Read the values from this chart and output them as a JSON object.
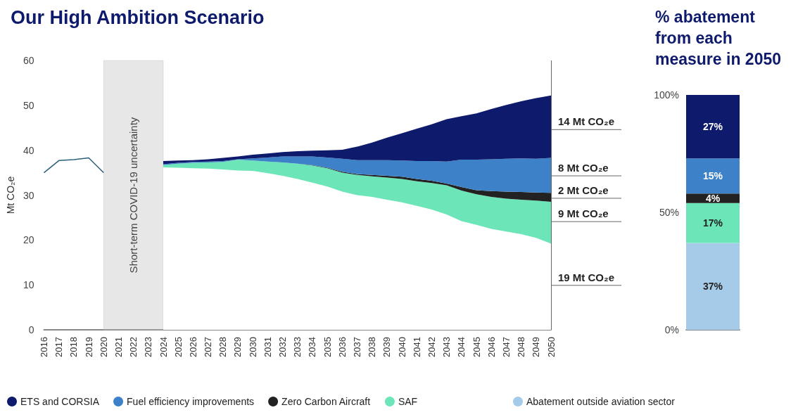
{
  "chart_data": [
    {
      "type": "area",
      "title": "Our High Ambition Scenario",
      "ylabel": "Mt CO₂e",
      "categories": [
        "2016",
        "2017",
        "2018",
        "2019",
        "2020",
        "2021",
        "2022",
        "2023",
        "2024",
        "2025",
        "2026",
        "2027",
        "2028",
        "2029",
        "2030",
        "2031",
        "2032",
        "2033",
        "2034",
        "2035",
        "2036",
        "2037",
        "2038",
        "2039",
        "2040",
        "2041",
        "2042",
        "2043",
        "2044",
        "2045",
        "2046",
        "2047",
        "2048",
        "2049",
        "2050"
      ],
      "stacked": true,
      "series": [
        {
          "type": "line",
          "color": "#2b5f7e",
          "values": [
            35.0,
            37.7,
            37.9,
            38.3,
            35.0,
            null,
            null,
            null,
            null,
            null,
            null,
            null,
            null,
            null,
            null,
            null,
            null,
            null,
            null,
            null,
            null,
            null,
            null,
            null,
            null,
            null,
            null,
            null,
            null,
            null,
            null,
            null,
            null,
            null,
            null
          ]
        },
        {
          "type": "area",
          "color": "#ffffff",
          "values": [
            null,
            null,
            null,
            null,
            null,
            null,
            null,
            null,
            36.2,
            36.1,
            36.0,
            35.9,
            35.7,
            35.5,
            35.4,
            34.9,
            34.3,
            33.6,
            32.8,
            31.9,
            30.8,
            30.0,
            29.6,
            29.0,
            28.4,
            27.6,
            26.8,
            25.7,
            24.2,
            23.4,
            22.5,
            21.9,
            21.3,
            20.5,
            19.2
          ]
        },
        {
          "type": "area",
          "name": "SAF",
          "color": "#6ce6b8",
          "values": [
            null,
            null,
            null,
            null,
            null,
            null,
            null,
            null,
            0.5,
            0.9,
            1.2,
            1.4,
            1.7,
            2.4,
            2.3,
            2.6,
            3.0,
            3.4,
            3.8,
            4.1,
            4.2,
            4.5,
            4.6,
            4.9,
            5.2,
            5.5,
            5.9,
            6.5,
            6.8,
            6.8,
            7.1,
            7.3,
            7.7,
            8.3,
            9.3
          ]
        },
        {
          "type": "area",
          "name": "Zero Carbon Aircraft",
          "color": "#222222",
          "values": [
            null,
            null,
            null,
            null,
            null,
            null,
            null,
            null,
            0,
            0,
            0,
            0,
            0,
            0,
            0,
            0,
            0,
            0,
            0.1,
            0.1,
            0.2,
            0.2,
            0.3,
            0.4,
            0.5,
            0.5,
            0.5,
            0.4,
            0.8,
            0.9,
            1.3,
            1.6,
            1.7,
            1.8,
            2.0
          ]
        },
        {
          "type": "area",
          "name": "Fuel efficiency improvements",
          "color": "#3d82c8",
          "values": [
            null,
            null,
            null,
            null,
            null,
            null,
            null,
            null,
            0.2,
            0.2,
            0.2,
            0.2,
            0.2,
            0.1,
            0.5,
            0.9,
            1.3,
            1.6,
            1.9,
            2.3,
            2.9,
            3.1,
            3.3,
            3.5,
            3.6,
            4.0,
            4.4,
            4.9,
            6.1,
            6.8,
            7.1,
            7.3,
            7.5,
            7.5,
            7.8
          ]
        },
        {
          "type": "area",
          "name": "ETS and CORSIA",
          "color": "#0e1a6b",
          "values": [
            null,
            null,
            null,
            null,
            null,
            null,
            null,
            null,
            0.7,
            0.5,
            0.4,
            0.5,
            0.7,
            0.6,
            0.8,
            0.9,
            1.0,
            1.2,
            1.3,
            1.6,
            2.0,
            3.0,
            3.9,
            5.0,
            6.1,
            7.2,
            8.2,
            9.4,
            9.7,
            10.3,
            11.2,
            12.0,
            12.7,
            13.5,
            13.9
          ]
        }
      ],
      "ylim": [
        0,
        60
      ],
      "yticks": [
        0,
        10,
        20,
        30,
        40,
        50,
        60
      ],
      "legend": "bottom",
      "bands": [
        {
          "axis": "x",
          "from": "2020",
          "to": "2024",
          "label": "Short-term COVID-19 uncertainty",
          "color": "#bbbbbb"
        }
      ],
      "ref_lines": [
        {
          "axis": "x",
          "value": "2050",
          "label": null,
          "color": "#666666"
        }
      ],
      "annotations": [
        {
          "text": "14 Mt CO₂e",
          "x": "2050",
          "y": 44.6
        },
        {
          "text": "8 Mt CO₂e",
          "x": "2050",
          "y": 34.3
        },
        {
          "text": "2 Mt CO₂e",
          "x": "2050",
          "y": 29.3
        },
        {
          "text": "9 Mt CO₂e",
          "x": "2050",
          "y": 24.1
        },
        {
          "text": "19 Mt CO₂e",
          "x": "2050",
          "y": 9.9
        }
      ]
    },
    {
      "type": "bar",
      "title": "% abatement from each measure in 2050",
      "categories": [
        null
      ],
      "stacked": true,
      "series": [
        {
          "name": "Abatement outside aviation sector",
          "color": "#a6cbe8",
          "values": [
            37
          ],
          "value_labels": [
            "37%"
          ]
        },
        {
          "color": "#6ce6b8",
          "values": [
            17
          ],
          "value_labels": [
            "17%"
          ]
        },
        {
          "color": "#222222",
          "values": [
            4
          ],
          "value_labels": [
            "4%"
          ]
        },
        {
          "color": "#3d82c8",
          "values": [
            15
          ],
          "value_labels": [
            "15%"
          ]
        },
        {
          "color": "#0e1a6b",
          "values": [
            27
          ],
          "value_labels": [
            "27%"
          ]
        }
      ],
      "ylim": [
        0,
        100
      ],
      "yticks": [
        {
          "value": 0,
          "label": "0%"
        },
        {
          "value": 50,
          "label": "50%"
        },
        {
          "value": 100,
          "label": "100%"
        }
      ],
      "legend": "bottom"
    }
  ]
}
